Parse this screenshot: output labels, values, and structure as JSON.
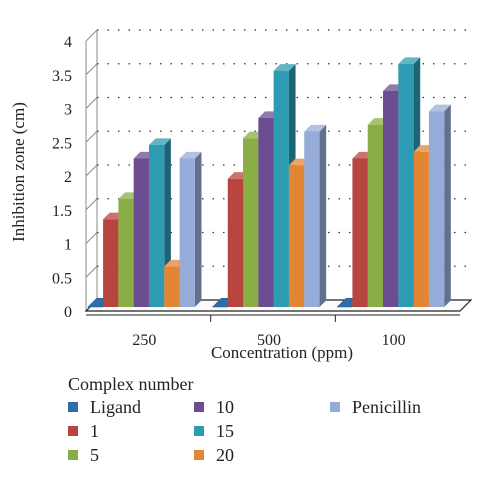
{
  "chart_data": {
    "type": "bar",
    "style": "3d-clustered-column",
    "xlabel": "Concentration (ppm)",
    "ylabel": "Inhibition zone (cm)",
    "ylim": [
      0,
      4
    ],
    "yticks": [
      "0",
      "0.5",
      "1",
      "1.5",
      "2",
      "2.5",
      "3",
      "3.5",
      "4"
    ],
    "categories": [
      "250",
      "500",
      "100"
    ],
    "grid": "dotted horizontal",
    "legend_title": "Complex number",
    "legend_position": "bottom",
    "series": [
      {
        "name": "Ligand",
        "color": "#2f6ca8",
        "values": [
          0,
          0,
          0
        ]
      },
      {
        "name": "1",
        "color": "#b84440",
        "values": [
          1.3,
          1.9,
          2.2
        ]
      },
      {
        "name": "5",
        "color": "#8bad45",
        "values": [
          1.6,
          2.5,
          2.7
        ]
      },
      {
        "name": "10",
        "color": "#6c4d92",
        "values": [
          2.2,
          2.8,
          3.2
        ]
      },
      {
        "name": "15",
        "color": "#2d9cb2",
        "values": [
          2.4,
          3.5,
          3.6
        ]
      },
      {
        "name": "20",
        "color": "#e38634",
        "values": [
          0.6,
          2.1,
          2.3
        ]
      },
      {
        "name": "Penicillin",
        "color": "#95acd8",
        "values": [
          2.2,
          2.6,
          2.9
        ]
      }
    ]
  }
}
